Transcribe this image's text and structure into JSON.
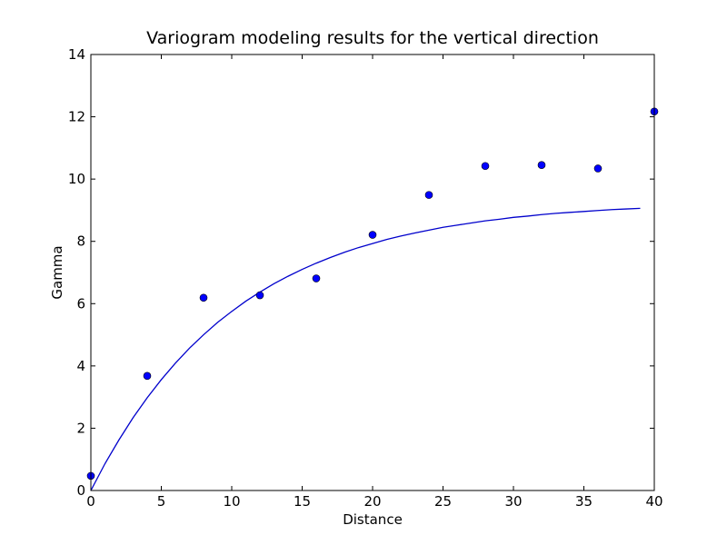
{
  "chart_data": {
    "type": "scatter",
    "title": "Variogram modeling results for the vertical direction",
    "xlabel": "Distance",
    "ylabel": "Gamma",
    "xlim": [
      0,
      40
    ],
    "ylim": [
      0,
      14
    ],
    "xticks": [
      0,
      5,
      10,
      15,
      20,
      25,
      30,
      35,
      40
    ],
    "yticks": [
      0,
      2,
      4,
      6,
      8,
      10,
      12,
      14
    ],
    "grid": false,
    "colors": {
      "points": "#0000ff",
      "line": "#0000cc"
    },
    "series": [
      {
        "kind": "points",
        "x": [
          0,
          4,
          8,
          12,
          16,
          20,
          24,
          28,
          32,
          36,
          40
        ],
        "y": [
          0.47,
          3.68,
          6.19,
          6.27,
          6.81,
          8.21,
          9.49,
          10.42,
          10.45,
          10.34,
          12.17
        ]
      },
      {
        "kind": "line",
        "x": [
          0,
          1,
          2,
          3,
          4,
          5,
          6,
          7,
          8,
          9,
          10,
          11,
          12,
          13,
          14,
          15,
          16,
          17,
          18,
          19,
          20,
          21,
          22,
          23,
          24,
          25,
          26,
          27,
          28,
          29,
          30,
          31,
          32,
          33,
          34,
          35,
          36,
          37,
          38,
          39
        ],
        "y": [
          0,
          0.86,
          1.63,
          2.34,
          2.98,
          3.56,
          4.09,
          4.57,
          5.0,
          5.4,
          5.75,
          6.08,
          6.37,
          6.64,
          6.88,
          7.1,
          7.3,
          7.48,
          7.65,
          7.8,
          7.93,
          8.06,
          8.17,
          8.27,
          8.36,
          8.45,
          8.52,
          8.59,
          8.66,
          8.71,
          8.77,
          8.81,
          8.86,
          8.9,
          8.93,
          8.96,
          8.99,
          9.02,
          9.04,
          9.06
        ]
      }
    ]
  }
}
